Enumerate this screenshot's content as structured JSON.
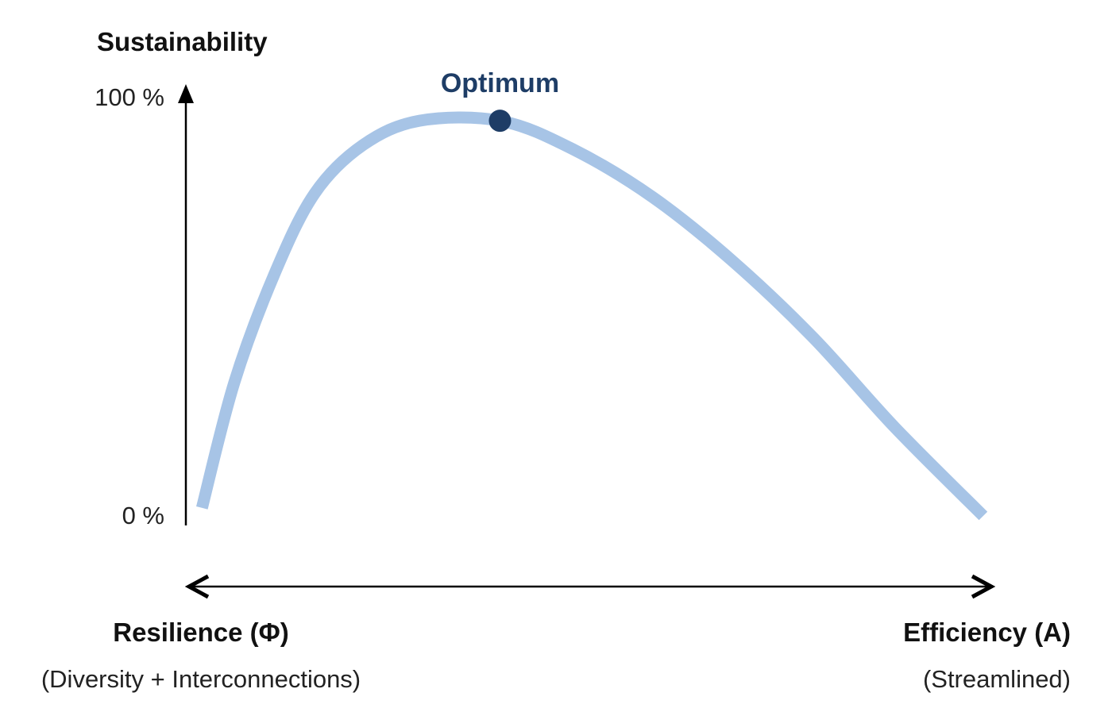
{
  "chart_data": {
    "type": "line",
    "ylabel": "Sustainability",
    "yticks": [
      "100 %",
      "0 %"
    ],
    "ylim": [
      0,
      100
    ],
    "xlim": [
      0,
      1
    ],
    "grid": false,
    "legend": "none",
    "series": [
      {
        "color": "#a7c4e6",
        "points": [
          {
            "x": 0.02,
            "y": 2
          },
          {
            "x": 0.06,
            "y": 33
          },
          {
            "x": 0.11,
            "y": 60
          },
          {
            "x": 0.16,
            "y": 80
          },
          {
            "x": 0.22,
            "y": 92
          },
          {
            "x": 0.29,
            "y": 98
          },
          {
            "x": 0.39,
            "y": 98
          },
          {
            "x": 0.48,
            "y": 91
          },
          {
            "x": 0.58,
            "y": 79
          },
          {
            "x": 0.68,
            "y": 63
          },
          {
            "x": 0.78,
            "y": 44
          },
          {
            "x": 0.88,
            "y": 22
          },
          {
            "x": 0.99,
            "y": 0
          }
        ]
      }
    ],
    "optimum": {
      "label": "Optimum",
      "x": 0.39,
      "y": 98,
      "color": "#1e3d66"
    },
    "x_extremes": {
      "left": {
        "title": "Resilience (Φ)",
        "subtitle": "(Diversity + Interconnections)"
      },
      "right": {
        "title": "Efficiency (A)",
        "subtitle": "(Streamlined)"
      }
    },
    "axis_color": "#000000"
  }
}
